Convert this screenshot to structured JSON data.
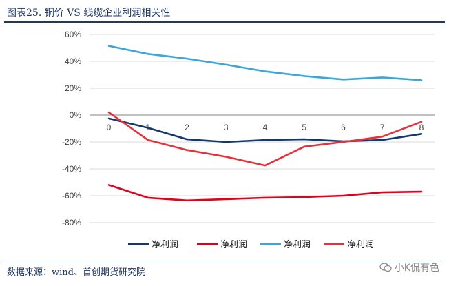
{
  "figure_title": "图表25.   铜价 VS 线缆企业利润相关性",
  "source": "数据来源：wind、首创期货研究院",
  "watermark": "小K侃有色",
  "chart_data": {
    "type": "line",
    "x": [
      0,
      1,
      2,
      3,
      4,
      5,
      6,
      7,
      8
    ],
    "ylim": [
      -80,
      60
    ],
    "yticks": [
      60,
      40,
      20,
      0,
      -20,
      -40,
      -60,
      -80
    ],
    "ytick_labels": [
      "60%",
      "40%",
      "20%",
      "0%",
      "-20%",
      "-40%",
      "-60%",
      "-80%"
    ],
    "xtick_labels": [
      "0",
      "1",
      "2",
      "3",
      "4",
      "5",
      "6",
      "7",
      "8"
    ],
    "grid": true,
    "legend": "bottom",
    "series": [
      {
        "name": "净利润",
        "color": "#13386b",
        "values": [
          -2.5,
          -9.5,
          -18,
          -20,
          -18.5,
          -18,
          -19.5,
          -18.5,
          -14
        ]
      },
      {
        "name": "净利润",
        "color": "#e3001b",
        "values": [
          -52,
          -61.5,
          -63.5,
          -62.5,
          -61.5,
          -61,
          -60,
          -57.5,
          -57
        ]
      },
      {
        "name": "净利润",
        "color": "#3ba6d8",
        "values": [
          51.5,
          45.5,
          42,
          37.5,
          32.5,
          29,
          26.5,
          28,
          26
        ]
      },
      {
        "name": "净利润",
        "color": "#e8303a",
        "values": [
          2,
          -18.5,
          -26,
          -31,
          -37.5,
          -23.5,
          -20,
          -16,
          -5
        ]
      }
    ]
  }
}
